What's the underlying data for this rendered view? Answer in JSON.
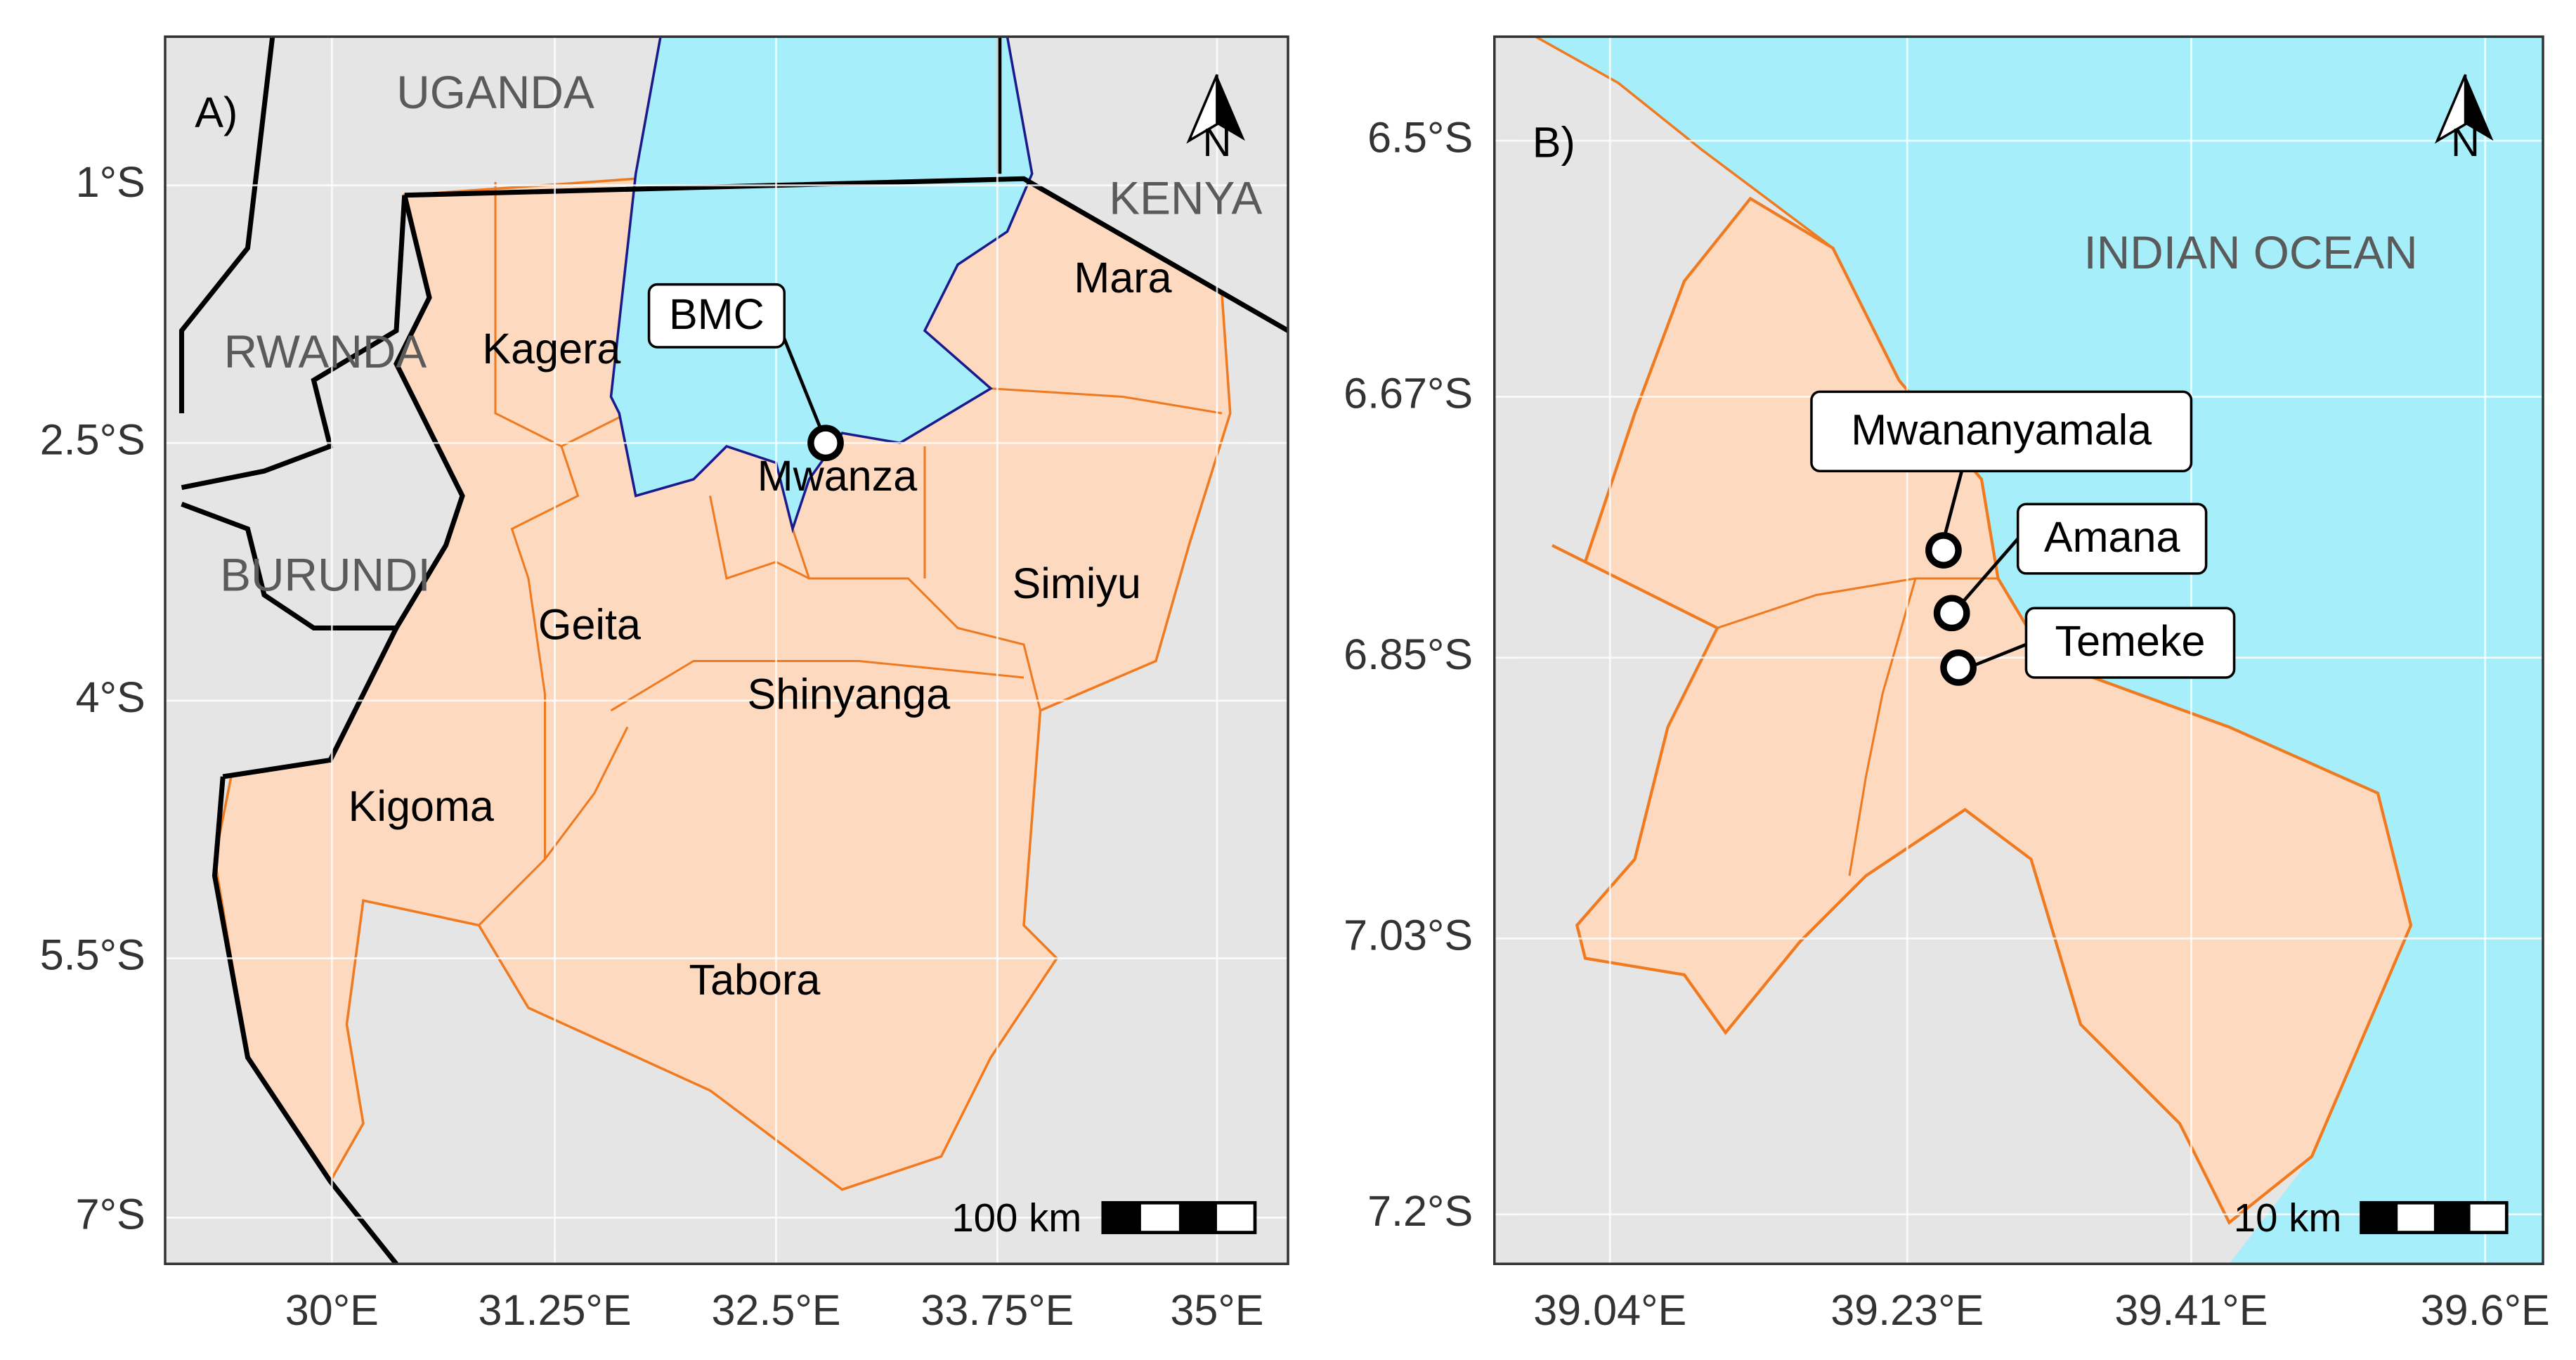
{
  "panels": [
    {
      "tag": "A)",
      "countries": [
        "UGANDA",
        "KENYA",
        "RWANDA",
        "BURUNDI"
      ],
      "regions": [
        "Kagera",
        "Mara",
        "Mwanza",
        "Simiyu",
        "Geita",
        "Shinyanga",
        "Kigoma",
        "Tabora"
      ],
      "sites": [
        "BMC"
      ],
      "north": "N",
      "scale_bar": "100 km",
      "y_ticks": [
        "1°S",
        "2.5°S",
        "4°S",
        "5.5°S",
        "7°S"
      ],
      "x_ticks": [
        "30°E",
        "31.25°E",
        "32.5°E",
        "33.75°E",
        "35°E"
      ]
    },
    {
      "tag": "B)",
      "countries": [
        "INDIAN OCEAN"
      ],
      "sites": [
        "Mwananyamala",
        "Amana",
        "Temeke"
      ],
      "north": "N",
      "scale_bar": "10 km",
      "y_ticks": [
        "6.5°S",
        "6.67°S",
        "6.85°S",
        "7.03°S",
        "7.2°S"
      ],
      "x_ticks": [
        "39.04°E",
        "39.23°E",
        "39.41°E",
        "39.6°E"
      ]
    }
  ]
}
